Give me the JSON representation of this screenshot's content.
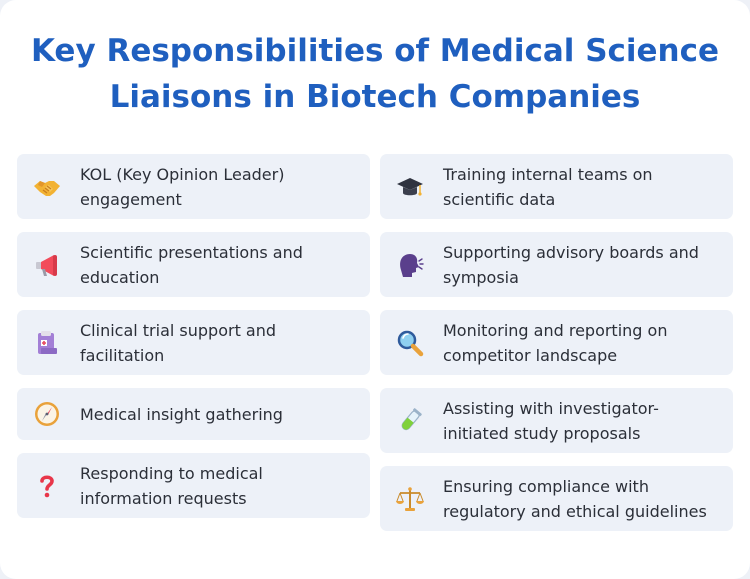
{
  "title": "Key Responsibilities of Medical Science Liaisons in Biotech Companies",
  "left_items": [
    {
      "label": "KOL (Key Opinion Leader) engagement",
      "icon": "handshake-icon"
    },
    {
      "label": "Scientific presentations and education",
      "icon": "megaphone-icon"
    },
    {
      "label": "Clinical trial support and facilitation",
      "icon": "clipboard-icon"
    },
    {
      "label": "Medical insight gathering",
      "icon": "compass-icon"
    },
    {
      "label": "Responding to medical information requests",
      "icon": "question-mark-icon"
    }
  ],
  "right_items": [
    {
      "label": "Training internal teams on scientific data",
      "icon": "graduation-cap-icon"
    },
    {
      "label": "Supporting advisory boards and symposia",
      "icon": "speaking-head-icon"
    },
    {
      "label": "Monitoring and reporting on competitor landscape",
      "icon": "magnifying-glass-icon"
    },
    {
      "label": "Assisting with investigator-initiated study proposals",
      "icon": "test-tube-icon"
    },
    {
      "label": "Ensuring compliance with regulatory and ethical guidelines",
      "icon": "balance-scale-icon"
    }
  ]
}
